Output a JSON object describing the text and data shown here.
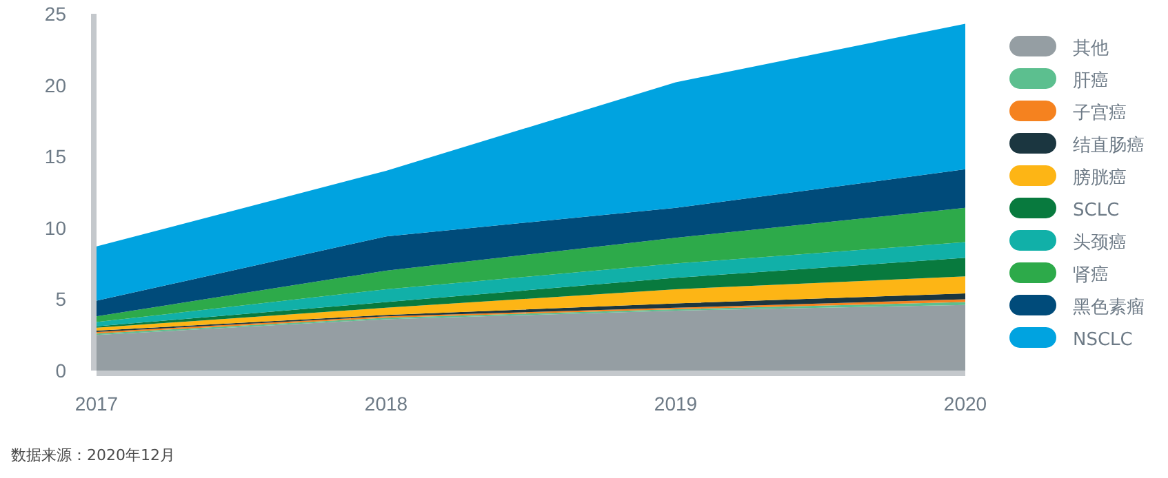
{
  "chart_data": {
    "type": "area",
    "stacked": true,
    "x": [
      2017,
      2018,
      2019,
      2020
    ],
    "xlim": [
      2017,
      2020
    ],
    "xticks": [
      2017,
      2018,
      2019,
      2020
    ],
    "ylim": [
      0,
      25
    ],
    "yticks": [
      0,
      5,
      10,
      15,
      20,
      25
    ],
    "legend": "right",
    "series": [
      {
        "name": "其他",
        "color": "#959ea3",
        "values": [
          2.5,
          3.6,
          4.2,
          4.6
        ]
      },
      {
        "name": "肝癌",
        "color": "#5cbf8f",
        "values": [
          0.1,
          0.1,
          0.1,
          0.2
        ]
      },
      {
        "name": "子宫癌",
        "color": "#f5821f",
        "values": [
          0.1,
          0.1,
          0.1,
          0.2
        ]
      },
      {
        "name": "结直肠癌",
        "color": "#1b3640",
        "values": [
          0.1,
          0.1,
          0.3,
          0.4
        ]
      },
      {
        "name": "膀胱癌",
        "color": "#fdb515",
        "values": [
          0.2,
          0.5,
          1.0,
          1.2
        ]
      },
      {
        "name": "SCLC",
        "color": "#087a3e",
        "values": [
          0.1,
          0.4,
          0.8,
          1.3
        ]
      },
      {
        "name": "头颈癌",
        "color": "#11b0a8",
        "values": [
          0.3,
          0.9,
          1.0,
          1.1
        ]
      },
      {
        "name": "肾癌",
        "color": "#2daa4a",
        "values": [
          0.4,
          1.3,
          1.8,
          2.4
        ]
      },
      {
        "name": "黑色素瘤",
        "color": "#004b7a",
        "values": [
          1.1,
          2.4,
          2.1,
          2.7
        ]
      },
      {
        "name": "NSCLC",
        "color": "#00a3e0",
        "values": [
          3.8,
          4.6,
          8.8,
          10.2
        ]
      }
    ],
    "annotations": [
      "数据来源：2020年12月"
    ]
  }
}
